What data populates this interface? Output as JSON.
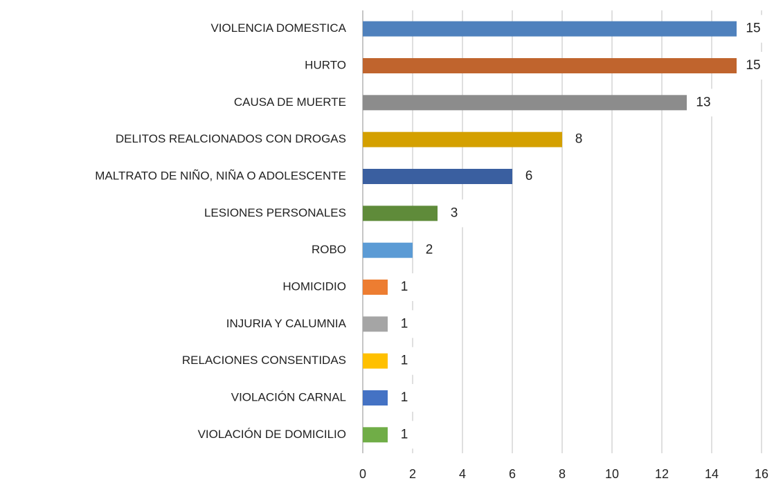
{
  "chart_data": {
    "type": "bar",
    "orientation": "horizontal",
    "categories": [
      "VIOLENCIA DOMESTICA",
      "HURTO",
      "CAUSA DE MUERTE",
      "DELITOS REALCIONADOS CON DROGAS",
      "MALTRATO DE NIÑO, NIÑA O ADOLESCENTE",
      "LESIONES PERSONALES",
      "ROBO",
      "HOMICIDIO",
      "INJURIA Y CALUMNIA",
      "RELACIONES CONSENTIDAS",
      "VIOLACIÓN CARNAL",
      "VIOLACIÓN DE DOMICILIO"
    ],
    "values": [
      15,
      15,
      13,
      8,
      6,
      3,
      2,
      1,
      1,
      1,
      1,
      1
    ],
    "colors": [
      "#4f81bd",
      "#c0642d",
      "#8c8c8c",
      "#d4a000",
      "#3a5fa0",
      "#5f8b3a",
      "#5b9bd5",
      "#ed7d31",
      "#a5a5a5",
      "#ffc000",
      "#4472c4",
      "#70ad47"
    ],
    "xlim": [
      0,
      16
    ],
    "xticks": [
      0,
      2,
      4,
      6,
      8,
      10,
      12,
      14,
      16
    ],
    "grid": true
  }
}
